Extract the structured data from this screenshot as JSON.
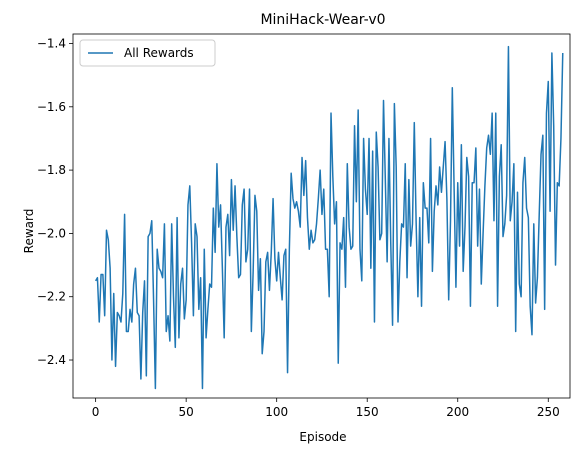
{
  "chart_data": {
    "type": "line",
    "title": "MiniHack-Wear-v0",
    "xlabel": "Episode",
    "ylabel": "Reward",
    "xlim": [
      -12.5,
      262
    ],
    "ylim": [
      -2.52,
      -1.37
    ],
    "xticks": [
      0,
      50,
      100,
      150,
      200,
      250
    ],
    "yticks": [
      -2.4,
      -2.2,
      -2.0,
      -1.8,
      -1.6,
      -1.4
    ],
    "xtick_labels": [
      "0",
      "50",
      "100",
      "150",
      "200",
      "250"
    ],
    "ytick_labels": [
      "−2.4",
      "−2.2",
      "−2.0",
      "−1.8",
      "−1.6",
      "−1.4"
    ],
    "grid": false,
    "legend": {
      "position": "upper-left",
      "entries": [
        "All Rewards"
      ]
    },
    "series": [
      {
        "name": "All Rewards",
        "color": "#1f77b4",
        "x_start": 0,
        "x_step": 1,
        "values": [
          -2.15,
          -2.14,
          -2.28,
          -2.13,
          -2.13,
          -2.26,
          -1.99,
          -2.02,
          -2.11,
          -2.4,
          -2.19,
          -2.42,
          -2.25,
          -2.26,
          -2.28,
          -2.19,
          -1.94,
          -2.31,
          -2.31,
          -2.24,
          -2.28,
          -2.16,
          -2.11,
          -2.25,
          -2.26,
          -2.46,
          -2.25,
          -2.15,
          -2.45,
          -2.01,
          -2.0,
          -1.96,
          -2.21,
          -2.49,
          -2.05,
          -2.11,
          -2.12,
          -2.14,
          -1.97,
          -2.31,
          -2.26,
          -2.34,
          -1.97,
          -2.2,
          -2.36,
          -1.95,
          -2.33,
          -2.16,
          -2.11,
          -2.27,
          -2.21,
          -1.91,
          -1.85,
          -2.03,
          -2.26,
          -1.97,
          -2.01,
          -2.24,
          -2.14,
          -2.49,
          -2.05,
          -2.33,
          -2.24,
          -2.16,
          -2.17,
          -1.92,
          -2.06,
          -1.78,
          -1.98,
          -1.91,
          -2.11,
          -2.33,
          -1.98,
          -1.94,
          -2.07,
          -1.83,
          -1.99,
          -1.85,
          -2.01,
          -2.14,
          -2.13,
          -1.91,
          -1.86,
          -2.09,
          -2.05,
          -1.86,
          -2.31,
          -2.12,
          -1.88,
          -1.93,
          -2.18,
          -2.08,
          -2.38,
          -2.31,
          -2.09,
          -2.06,
          -2.18,
          -2.06,
          -1.89,
          -2.08,
          -2.15,
          -2.06,
          -2.14,
          -2.21,
          -2.07,
          -2.05,
          -2.44,
          -2.05,
          -1.81,
          -1.89,
          -1.92,
          -1.9,
          -1.93,
          -1.98,
          -1.76,
          -1.88,
          -1.77,
          -1.95,
          -2.05,
          -1.99,
          -2.03,
          -2.02,
          -1.97,
          -1.89,
          -1.8,
          -1.94,
          -1.86,
          -2.05,
          -2.05,
          -2.2,
          -1.62,
          -1.82,
          -1.97,
          -1.9,
          -2.41,
          -2.03,
          -2.05,
          -1.95,
          -2.17,
          -1.78,
          -1.98,
          -2.05,
          -2.04,
          -1.66,
          -1.9,
          -1.61,
          -2.05,
          -2.15,
          -1.7,
          -1.86,
          -1.94,
          -1.7,
          -2.11,
          -1.74,
          -2.28,
          -1.68,
          -1.79,
          -2.02,
          -2.0,
          -1.58,
          -1.83,
          -2.09,
          -1.7,
          -2.03,
          -2.29,
          -1.59,
          -1.79,
          -2.28,
          -2.09,
          -1.97,
          -1.98,
          -1.78,
          -2.14,
          -1.83,
          -2.04,
          -1.97,
          -1.65,
          -1.96,
          -2.2,
          -1.95,
          -2.23,
          -1.84,
          -1.92,
          -1.92,
          -2.03,
          -1.7,
          -2.12,
          -1.93,
          -1.85,
          -1.91,
          -1.79,
          -1.87,
          -1.79,
          -1.71,
          -1.89,
          -2.21,
          -1.96,
          -1.54,
          -1.86,
          -2.17,
          -1.84,
          -2.04,
          -1.72,
          -2.12,
          -1.98,
          -1.76,
          -1.82,
          -2.23,
          -1.84,
          -1.84,
          -1.73,
          -2.04,
          -1.86,
          -2.16,
          -2.0,
          -1.85,
          -1.73,
          -1.69,
          -1.75,
          -1.62,
          -1.96,
          -1.62,
          -2.23,
          -1.82,
          -1.72,
          -2.01,
          -1.97,
          -1.88,
          -1.41,
          -1.96,
          -1.9,
          -1.78,
          -2.31,
          -1.87,
          -2.16,
          -2.2,
          -1.84,
          -1.76,
          -1.92,
          -1.95,
          -2.23,
          -2.32,
          -1.97,
          -2.22,
          -2.14,
          -1.94,
          -1.75,
          -1.69,
          -2.24,
          -1.62,
          -1.52,
          -1.93,
          -1.43,
          -1.66,
          -2.1,
          -1.84,
          -1.85,
          -1.7,
          -1.43
        ]
      }
    ]
  }
}
